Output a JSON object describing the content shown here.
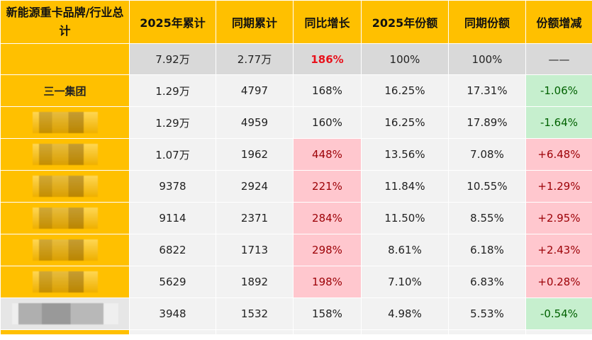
{
  "headers": [
    "新能源重卡品牌/行业总计",
    "2025年累计",
    "同期累计",
    "同比增长",
    "2025年份额",
    "同期份额",
    "份额增减"
  ],
  "total": {
    "ytd_2025": "7.92万",
    "ytd_prev": "2.77万",
    "yoy": "186%",
    "share_2025": "100%",
    "share_prev": "100%",
    "share_change": "——"
  },
  "rows": [
    {
      "brand": "三一集团",
      "ytd_2025": "1.29万",
      "ytd_prev": "4797",
      "yoy": "168%",
      "share_2025": "16.25%",
      "share_prev": "17.31%",
      "share_change": "-1.06%"
    },
    {
      "brand": "",
      "ytd_2025": "1.29万",
      "ytd_prev": "4959",
      "yoy": "160%",
      "share_2025": "16.25%",
      "share_prev": "17.89%",
      "share_change": "-1.64%"
    },
    {
      "brand": "",
      "ytd_2025": "1.07万",
      "ytd_prev": "1962",
      "yoy": "448%",
      "share_2025": "13.56%",
      "share_prev": "7.08%",
      "share_change": "+6.48%"
    },
    {
      "brand": "",
      "ytd_2025": "9378",
      "ytd_prev": "2924",
      "yoy": "221%",
      "share_2025": "11.84%",
      "share_prev": "10.55%",
      "share_change": "+1.29%"
    },
    {
      "brand": "",
      "ytd_2025": "9114",
      "ytd_prev": "2371",
      "yoy": "284%",
      "share_2025": "11.50%",
      "share_prev": "8.55%",
      "share_change": "+2.95%"
    },
    {
      "brand": "",
      "ytd_2025": "6822",
      "ytd_prev": "1713",
      "yoy": "298%",
      "share_2025": "8.61%",
      "share_prev": "6.18%",
      "share_change": "+2.43%"
    },
    {
      "brand": "",
      "ytd_2025": "5629",
      "ytd_prev": "1892",
      "yoy": "198%",
      "share_2025": "7.10%",
      "share_prev": "6.83%",
      "share_change": "+0.28%"
    },
    {
      "brand": "",
      "ytd_2025": "3948",
      "ytd_prev": "1532",
      "yoy": "158%",
      "share_2025": "4.98%",
      "share_prev": "5.53%",
      "share_change": "-0.54%"
    }
  ]
}
